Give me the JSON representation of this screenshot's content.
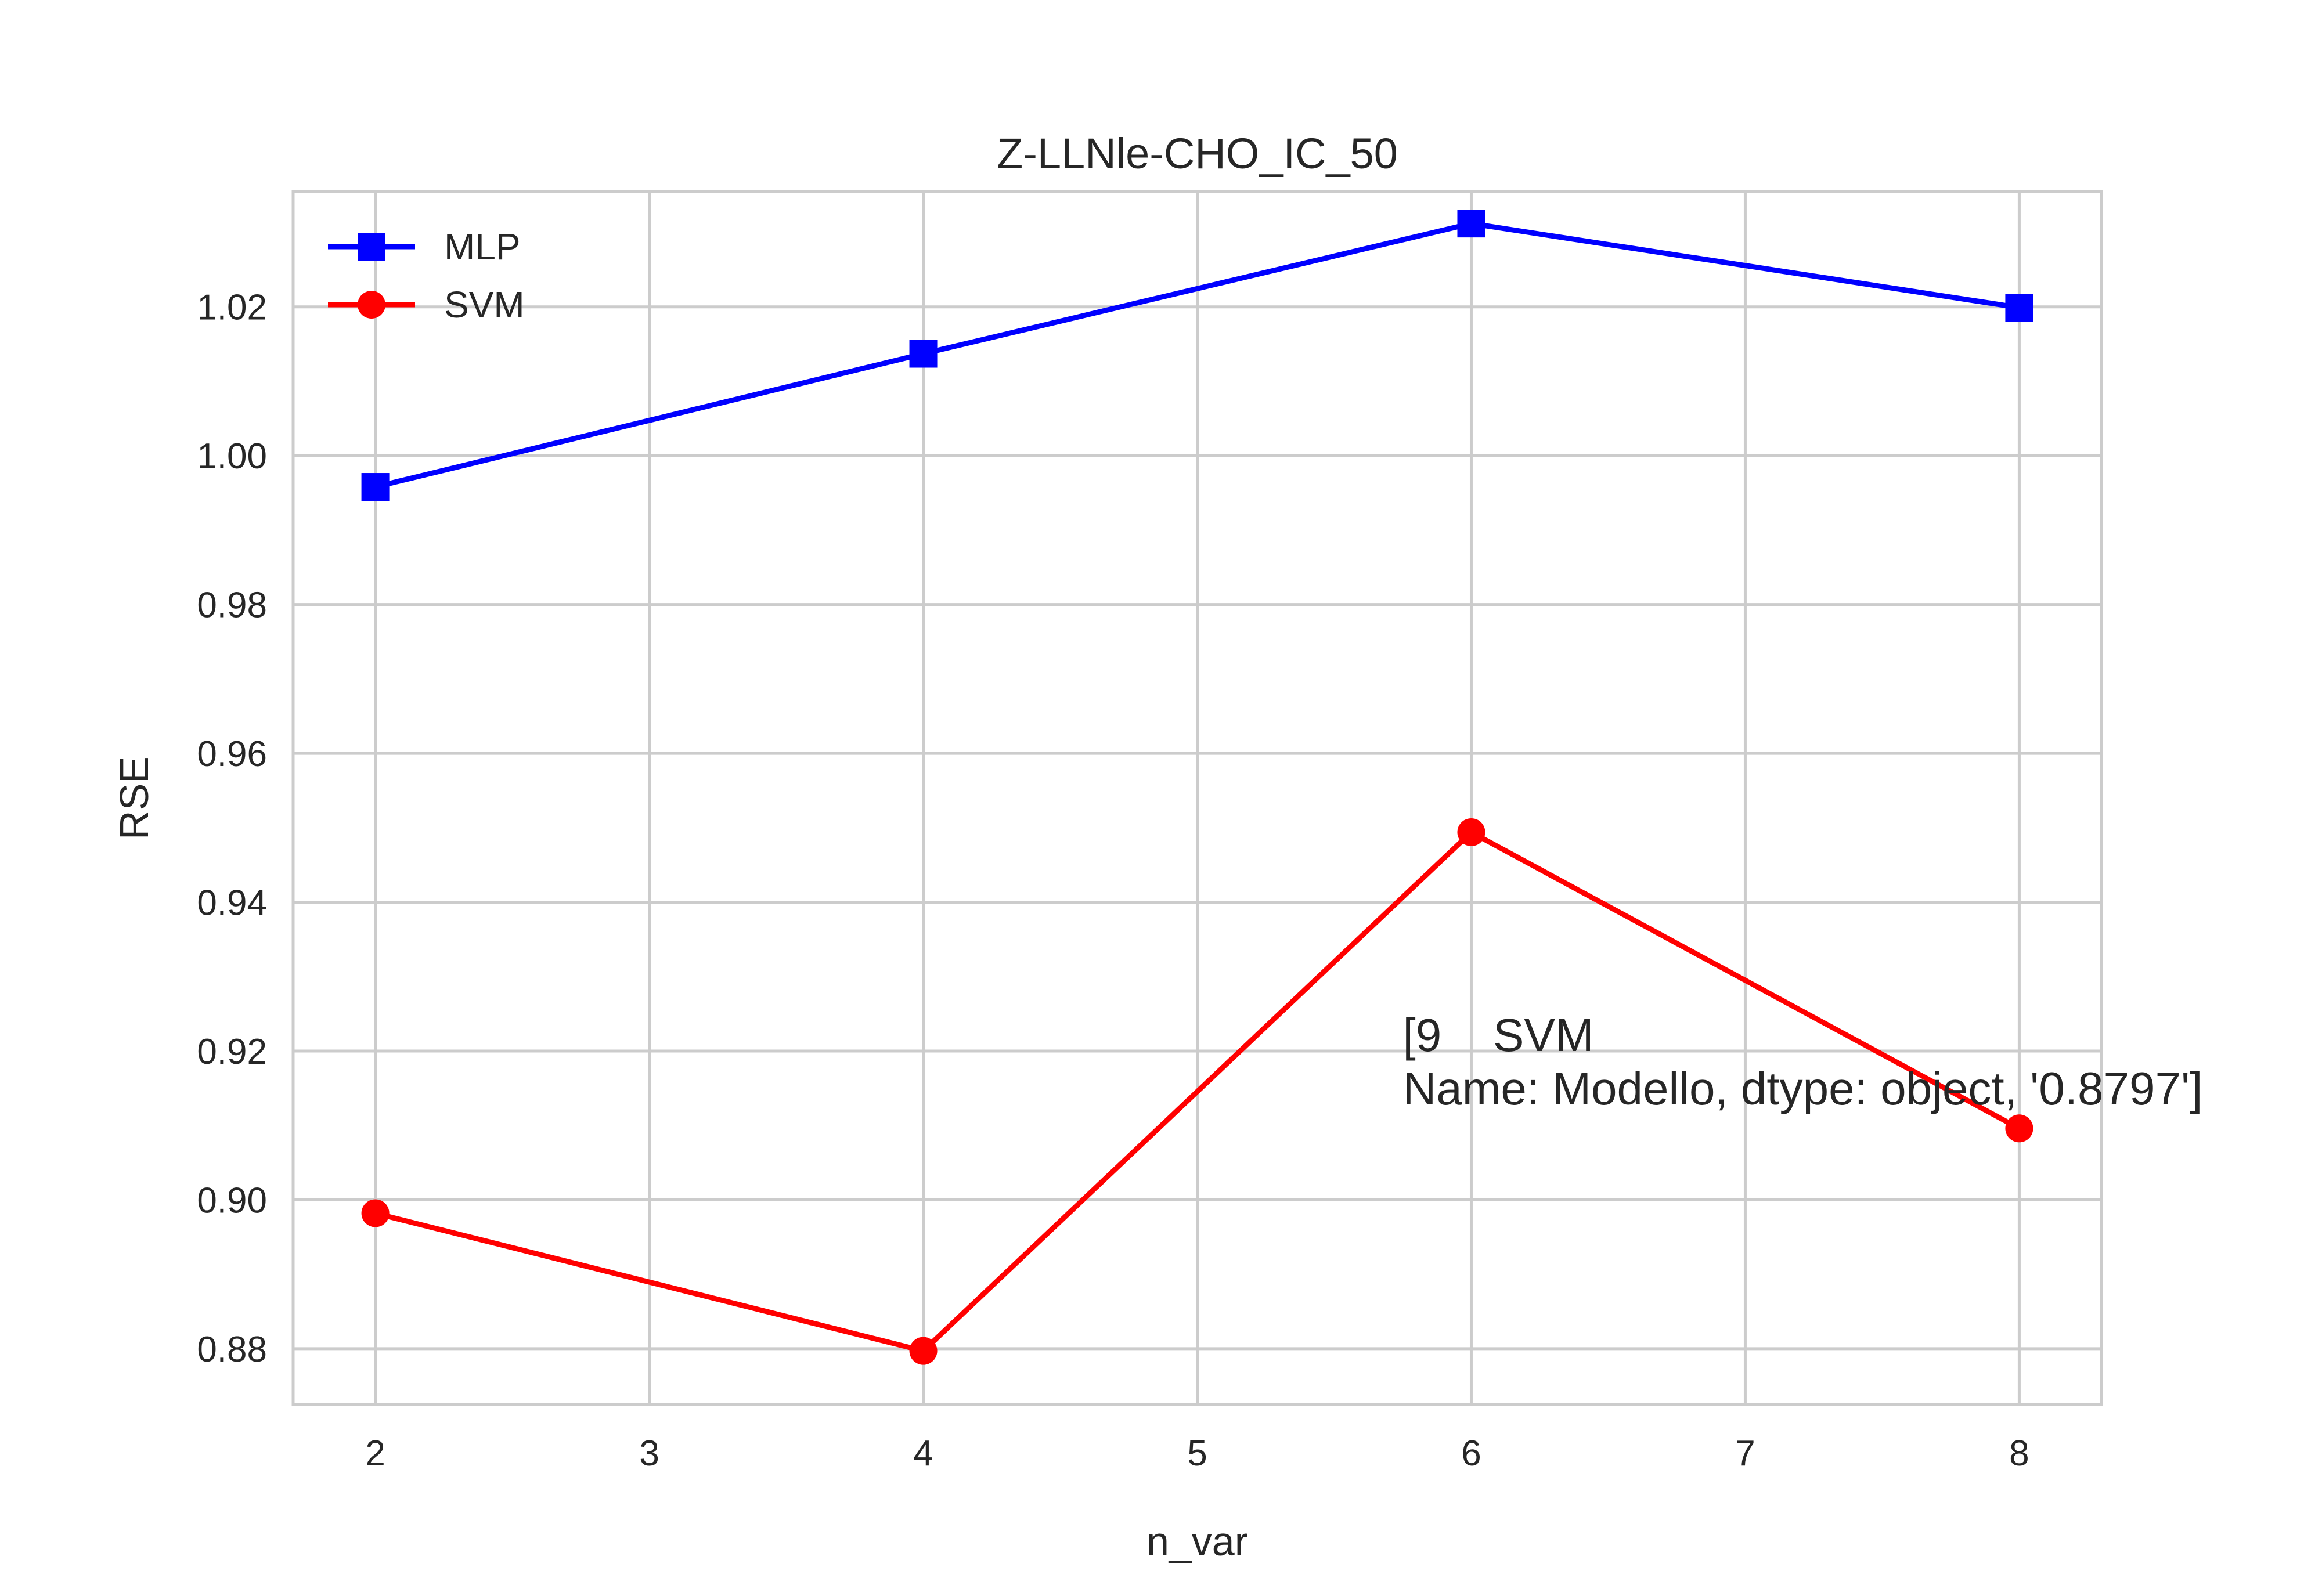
{
  "chart_data": {
    "type": "line",
    "title": "Z-LLNle-CHO_IC_50",
    "xlabel": "n_var",
    "ylabel": "RSE",
    "x": [
      2,
      4,
      6,
      8
    ],
    "xlim": [
      1.7,
      8.3
    ],
    "ylim": [
      0.8725,
      1.0355
    ],
    "xticks": [
      "2",
      "3",
      "4",
      "5",
      "6",
      "7",
      "8"
    ],
    "yticks": [
      "0.88",
      "0.90",
      "0.92",
      "0.94",
      "0.96",
      "0.98",
      "1.00",
      "1.02"
    ],
    "grid": true,
    "legend_position": "top-left",
    "series": [
      {
        "name": "MLP",
        "color": "#0000ff",
        "marker": "square",
        "values": [
          0.9958,
          1.0137,
          1.0312,
          1.0199
        ]
      },
      {
        "name": "SVM",
        "color": "#ff0000",
        "marker": "circle",
        "values": [
          0.8982,
          0.8797,
          0.9494,
          0.9096
        ]
      }
    ],
    "annotation": {
      "lines": [
        "[9    SVM",
        "Name: Modello, dtype: object, '0.8797']"
      ],
      "x": 5.75,
      "y": 0.92
    }
  }
}
